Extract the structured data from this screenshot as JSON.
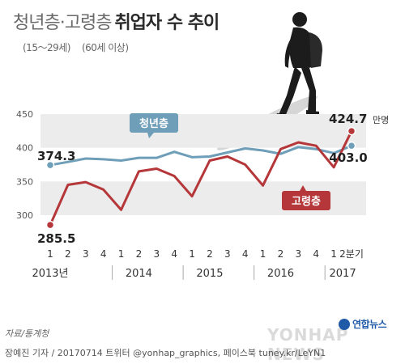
{
  "header": {
    "title_part1": "청년층·고령층",
    "title_part2": "취업자 수 추이",
    "subtitle_youth": "(15～29세)",
    "subtitle_elder": "(60세 이상)"
  },
  "colors": {
    "youth": "#6e9eb8",
    "elder": "#b5373a",
    "band": "#ececec",
    "axis_text": "#555555"
  },
  "chart_data": {
    "type": "line",
    "ylim": [
      260,
      460
    ],
    "yticks": [
      300,
      350,
      400,
      450
    ],
    "x_quarter_labels": [
      "1",
      "2",
      "3",
      "4",
      "1",
      "2",
      "3",
      "4",
      "1",
      "2",
      "3",
      "4",
      "1",
      "2",
      "3",
      "4",
      "1",
      "2분기"
    ],
    "x_year_labels": [
      {
        "label": "2013년",
        "index": 0
      },
      {
        "label": "2014",
        "index": 5
      },
      {
        "label": "2015",
        "index": 9
      },
      {
        "label": "2016",
        "index": 13
      },
      {
        "label": "2017",
        "index": 16.5
      }
    ],
    "unit": "만명",
    "series": [
      {
        "name": "청년층",
        "values": [
          374.3,
          379,
          384,
          383,
          381,
          385,
          385,
          394,
          386,
          387,
          393,
          399,
          396,
          391,
          401,
          398,
          392,
          403.0
        ],
        "first_label": "374.3",
        "last_label": "403.0"
      },
      {
        "name": "고령층",
        "values": [
          285.5,
          345,
          349,
          338,
          308,
          365,
          369,
          358,
          328,
          381,
          387,
          375,
          344,
          398,
          408,
          403,
          371,
          424.7
        ],
        "first_label": "285.5",
        "last_label": "424.7"
      }
    ]
  },
  "source": "자료/통계청",
  "footer": "장예진 기자 / 20170714 트위터 @yonhap_graphics, 페이스북 tuney.kr/LeYN1",
  "logo": "연합뉴스",
  "watermark": "YONHAP NEWS"
}
